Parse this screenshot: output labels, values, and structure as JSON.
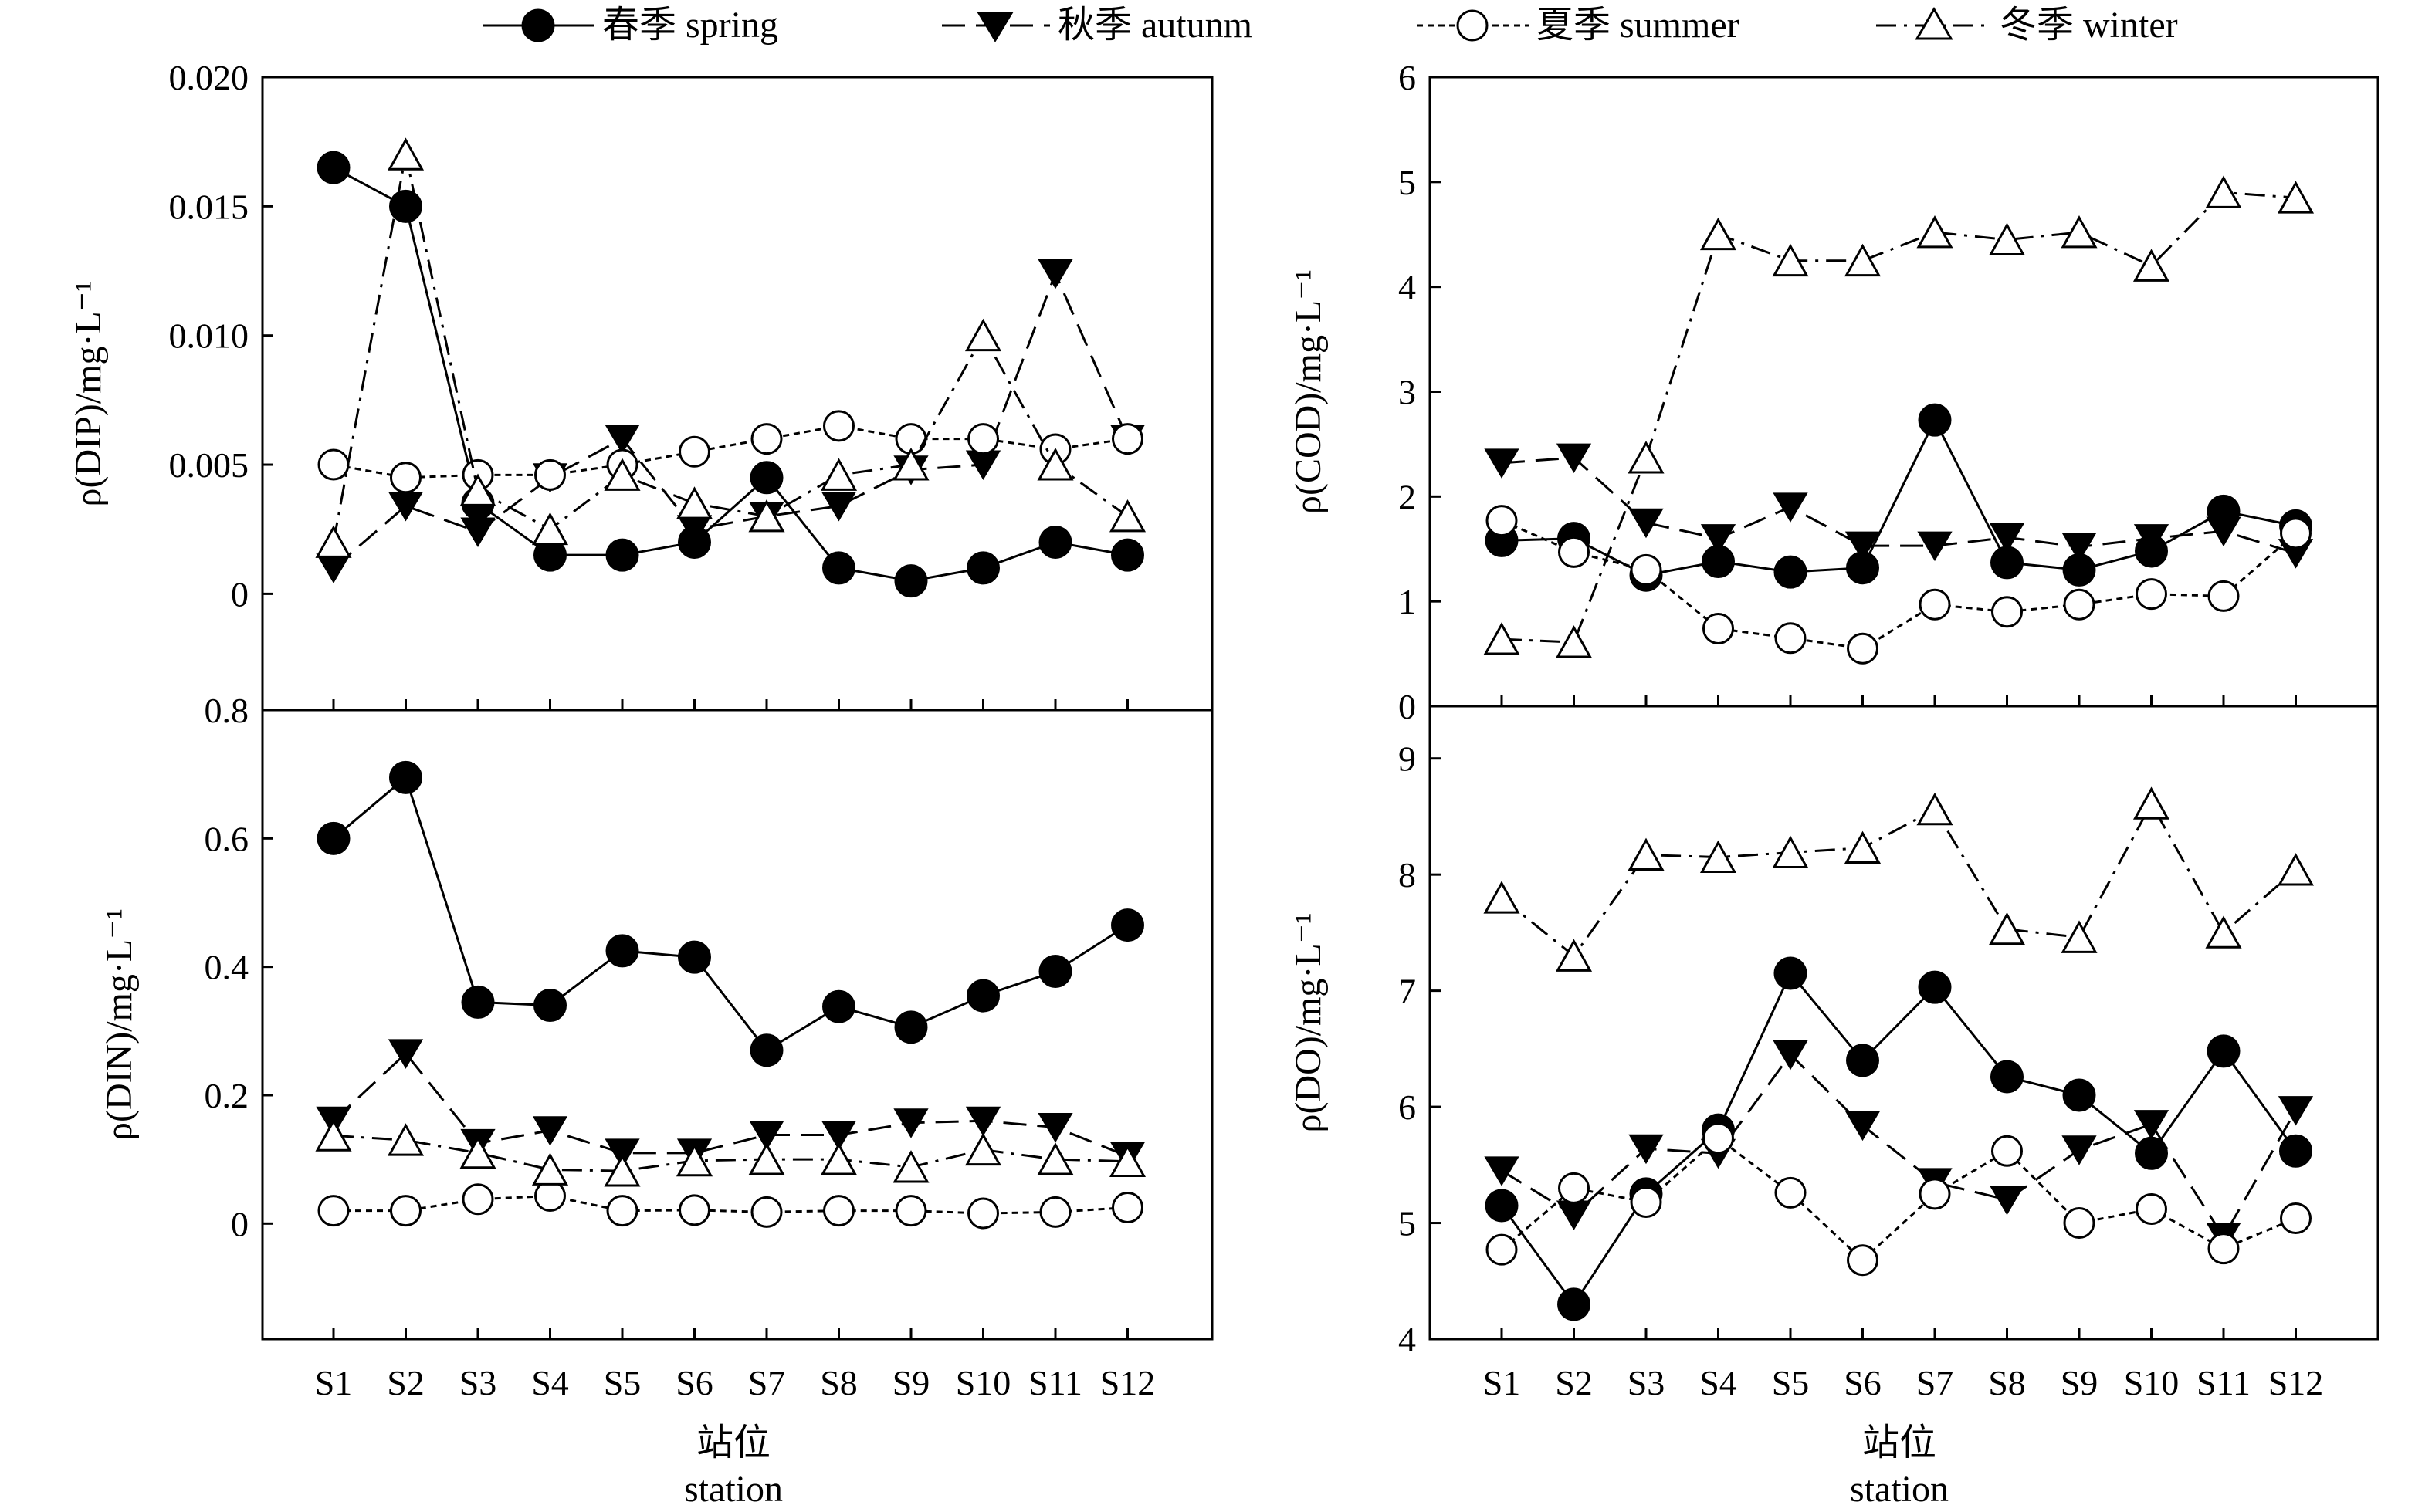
{
  "legend": {
    "spring": "春季 spring",
    "autumn": "秋季 autunm",
    "summer": "夏季 summer",
    "winter": "冬季 winter"
  },
  "xaxis": {
    "title_cn": "站位",
    "title_en": "station"
  },
  "chart_data": [
    {
      "id": "dip",
      "type": "line",
      "ylabel": "ρ(DIP)/mg·L⁻¹",
      "ylim": [
        -0.0045,
        0.02
      ],
      "yticks": [
        0,
        0.005,
        0.01,
        0.015,
        0.02
      ],
      "ytick_labels": [
        "0",
        "0.005",
        "0.010",
        "0.015",
        "0.020"
      ],
      "categories": [
        "S1",
        "S2",
        "S3",
        "S4",
        "S5",
        "S6",
        "S7",
        "S8",
        "S9",
        "S10",
        "S11",
        "S12"
      ],
      "series": [
        {
          "name": "春季 spring",
          "key": "spring",
          "values": [
            0.0165,
            0.015,
            0.0035,
            0.0015,
            0.0015,
            0.002,
            0.0045,
            0.001,
            0.0005,
            0.001,
            0.002,
            0.0015
          ]
        },
        {
          "name": "秋季 autunm",
          "key": "autumn",
          "values": [
            0.001,
            0.0034,
            0.0024,
            0.0045,
            0.006,
            0.0025,
            0.003,
            0.0034,
            0.0048,
            0.005,
            0.0124,
            0.006
          ]
        },
        {
          "name": "夏季 summer",
          "key": "summer",
          "values": [
            0.005,
            0.0045,
            0.0046,
            0.0046,
            0.005,
            0.0055,
            0.006,
            0.0065,
            0.006,
            0.006,
            0.0056,
            0.006
          ]
        },
        {
          "name": "冬季 winter",
          "key": "winter",
          "values": [
            0.002,
            0.017,
            0.004,
            0.0025,
            0.0046,
            0.0035,
            0.003,
            0.0046,
            0.005,
            0.01,
            0.005,
            0.003
          ]
        }
      ]
    },
    {
      "id": "din",
      "type": "line",
      "ylabel": "ρ(DIN)/mg·L⁻¹",
      "ylim": [
        -0.18,
        0.8
      ],
      "yticks": [
        0,
        0.2,
        0.4,
        0.6,
        0.8
      ],
      "ytick_labels": [
        "0",
        "0.2",
        "0.4",
        "0.6",
        "0.8"
      ],
      "categories": [
        "S1",
        "S2",
        "S3",
        "S4",
        "S5",
        "S6",
        "S7",
        "S8",
        "S9",
        "S10",
        "S11",
        "S12"
      ],
      "series": [
        {
          "name": "春季 spring",
          "key": "spring",
          "values": [
            0.6,
            0.695,
            0.345,
            0.34,
            0.425,
            0.415,
            0.27,
            0.338,
            0.306,
            0.355,
            0.393,
            0.465
          ]
        },
        {
          "name": "秋季 autunm",
          "key": "autumn",
          "values": [
            0.16,
            0.265,
            0.125,
            0.145,
            0.11,
            0.11,
            0.138,
            0.138,
            0.157,
            0.16,
            0.15,
            0.105
          ]
        },
        {
          "name": "夏季 summer",
          "key": "summer",
          "values": [
            0.02,
            0.02,
            0.038,
            0.043,
            0.02,
            0.021,
            0.018,
            0.02,
            0.02,
            0.016,
            0.018,
            0.025
          ]
        },
        {
          "name": "冬季 winter",
          "key": "winter",
          "values": [
            0.137,
            0.13,
            0.11,
            0.084,
            0.082,
            0.098,
            0.1,
            0.1,
            0.088,
            0.115,
            0.1,
            0.097
          ]
        }
      ]
    },
    {
      "id": "cod",
      "type": "line",
      "ylabel": "ρ(COD)/mg·L⁻¹",
      "ylim": [
        0,
        6
      ],
      "yticks": [
        0,
        1,
        2,
        3,
        4,
        5,
        6
      ],
      "ytick_labels": [
        "0",
        "1",
        "2",
        "3",
        "4",
        "5",
        "6"
      ],
      "categories": [
        "S1",
        "S2",
        "S3",
        "S4",
        "S5",
        "S6",
        "S7",
        "S8",
        "S9",
        "S10",
        "S11",
        "S12"
      ],
      "series": [
        {
          "name": "春季 spring",
          "key": "spring",
          "values": [
            1.58,
            1.6,
            1.25,
            1.38,
            1.28,
            1.32,
            2.73,
            1.37,
            1.3,
            1.48,
            1.86,
            1.72
          ]
        },
        {
          "name": "秋季 autunm",
          "key": "autumn",
          "values": [
            2.32,
            2.37,
            1.75,
            1.6,
            1.9,
            1.53,
            1.53,
            1.61,
            1.52,
            1.6,
            1.67,
            1.46
          ]
        },
        {
          "name": "夏季 summer",
          "key": "summer",
          "values": [
            1.77,
            1.47,
            1.3,
            0.74,
            0.65,
            0.55,
            0.97,
            0.9,
            0.97,
            1.07,
            1.05,
            1.65
          ]
        },
        {
          "name": "冬季 winter",
          "key": "winter",
          "values": [
            0.64,
            0.61,
            2.37,
            4.5,
            4.25,
            4.25,
            4.52,
            4.45,
            4.52,
            4.2,
            4.9,
            4.85
          ]
        }
      ]
    },
    {
      "id": "do",
      "type": "line",
      "ylabel": "ρ(DO)/mg·L⁻¹",
      "ylim": [
        4,
        9.45
      ],
      "yticks": [
        4,
        5,
        6,
        7,
        8,
        9
      ],
      "ytick_labels": [
        "4",
        "5",
        "6",
        "7",
        "8",
        "9"
      ],
      "categories": [
        "S1",
        "S2",
        "S3",
        "S4",
        "S5",
        "S6",
        "S7",
        "S8",
        "S9",
        "S10",
        "S11",
        "S12"
      ],
      "series": [
        {
          "name": "春季 spring",
          "key": "spring",
          "values": [
            5.15,
            4.3,
            5.25,
            5.8,
            7.15,
            6.4,
            7.03,
            6.26,
            6.1,
            5.6,
            6.48,
            5.62
          ]
        },
        {
          "name": "秋季 autunm",
          "key": "autumn",
          "values": [
            5.45,
            5.07,
            5.64,
            5.6,
            6.45,
            5.84,
            5.35,
            5.2,
            5.63,
            5.85,
            4.88,
            5.97
          ]
        },
        {
          "name": "夏季 summer",
          "key": "summer",
          "values": [
            4.77,
            5.3,
            5.18,
            5.73,
            5.26,
            4.68,
            5.25,
            5.62,
            5.0,
            5.12,
            4.78,
            5.04
          ]
        },
        {
          "name": "冬季 winter",
          "key": "winter",
          "values": [
            7.8,
            7.3,
            8.17,
            8.15,
            8.19,
            8.23,
            8.56,
            7.53,
            7.46,
            8.61,
            7.5,
            8.04
          ]
        }
      ]
    }
  ]
}
